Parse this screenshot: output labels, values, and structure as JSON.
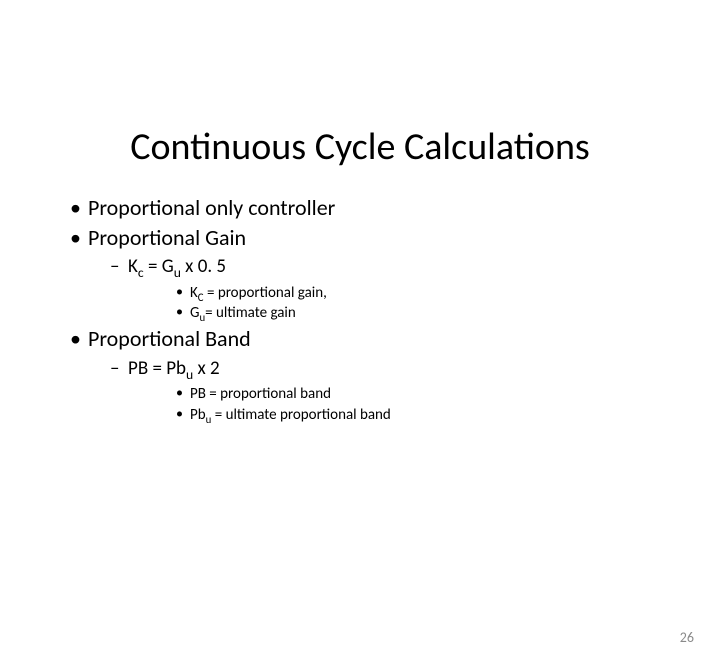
{
  "title": "Continuous Cycle Calculations",
  "bullets": {
    "b1": "Proportional only controller",
    "b2": "Proportional Gain",
    "b2_1_pre": "K",
    "b2_1_sub1": "c",
    "b2_1_mid": " = G",
    "b2_1_sub2": "u",
    "b2_1_post": " x 0. 5",
    "b2_1_1_pre": "K",
    "b2_1_1_sub": "C",
    "b2_1_1_post": " = proportional gain,",
    "b2_1_2_pre": "G",
    "b2_1_2_sub": "u",
    "b2_1_2_post": "= ultimate gain",
    "b3": "Proportional Band",
    "b3_1_pre": "PB = Pb",
    "b3_1_sub": "u",
    "b3_1_post": " x 2",
    "b3_1_1": "PB = proportional band",
    "b3_1_2_pre": "Pb",
    "b3_1_2_sub": "u",
    "b3_1_2_post": " = ultimate proportional band"
  },
  "page_number": "26",
  "style": {
    "background": "#ffffff",
    "text_color": "#000000",
    "page_num_color": "#8a8a8a",
    "title_fontsize": 38,
    "l1_fontsize": 22,
    "l2_fontsize": 19,
    "l3_fontsize": 15
  }
}
